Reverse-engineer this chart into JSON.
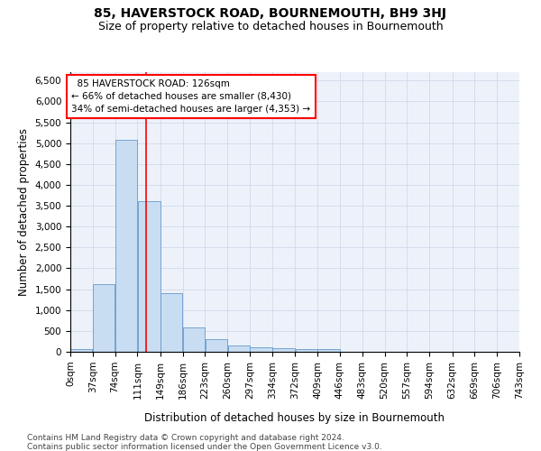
{
  "title1": "85, HAVERSTOCK ROAD, BOURNEMOUTH, BH9 3HJ",
  "title2": "Size of property relative to detached houses in Bournemouth",
  "xlabel": "Distribution of detached houses by size in Bournemouth",
  "ylabel": "Number of detached properties",
  "footer1": "Contains HM Land Registry data © Crown copyright and database right 2024.",
  "footer2": "Contains public sector information licensed under the Open Government Licence v3.0.",
  "annotation_line1": "  85 HAVERSTOCK ROAD: 126sqm",
  "annotation_line2": "← 66% of detached houses are smaller (8,430)",
  "annotation_line3": "34% of semi-detached houses are larger (4,353) →",
  "bar_color": "#c9ddf2",
  "bar_edge_color": "#6699cc",
  "property_line_x": 126,
  "bin_edges": [
    0,
    37,
    74,
    111,
    149,
    186,
    223,
    260,
    297,
    334,
    372,
    409,
    446,
    483,
    520,
    557,
    594,
    632,
    669,
    706,
    743
  ],
  "bar_heights": [
    75,
    1630,
    5080,
    3600,
    1410,
    580,
    295,
    150,
    110,
    80,
    60,
    55,
    0,
    0,
    0,
    0,
    0,
    0,
    0,
    0
  ],
  "ylim": [
    0,
    6700
  ],
  "yticks": [
    0,
    500,
    1000,
    1500,
    2000,
    2500,
    3000,
    3500,
    4000,
    4500,
    5000,
    5500,
    6000,
    6500
  ],
  "title1_fontsize": 10,
  "title2_fontsize": 9,
  "xlabel_fontsize": 8.5,
  "ylabel_fontsize": 8.5,
  "tick_fontsize": 7.5,
  "footer_fontsize": 6.5,
  "annotation_fontsize": 7.5
}
